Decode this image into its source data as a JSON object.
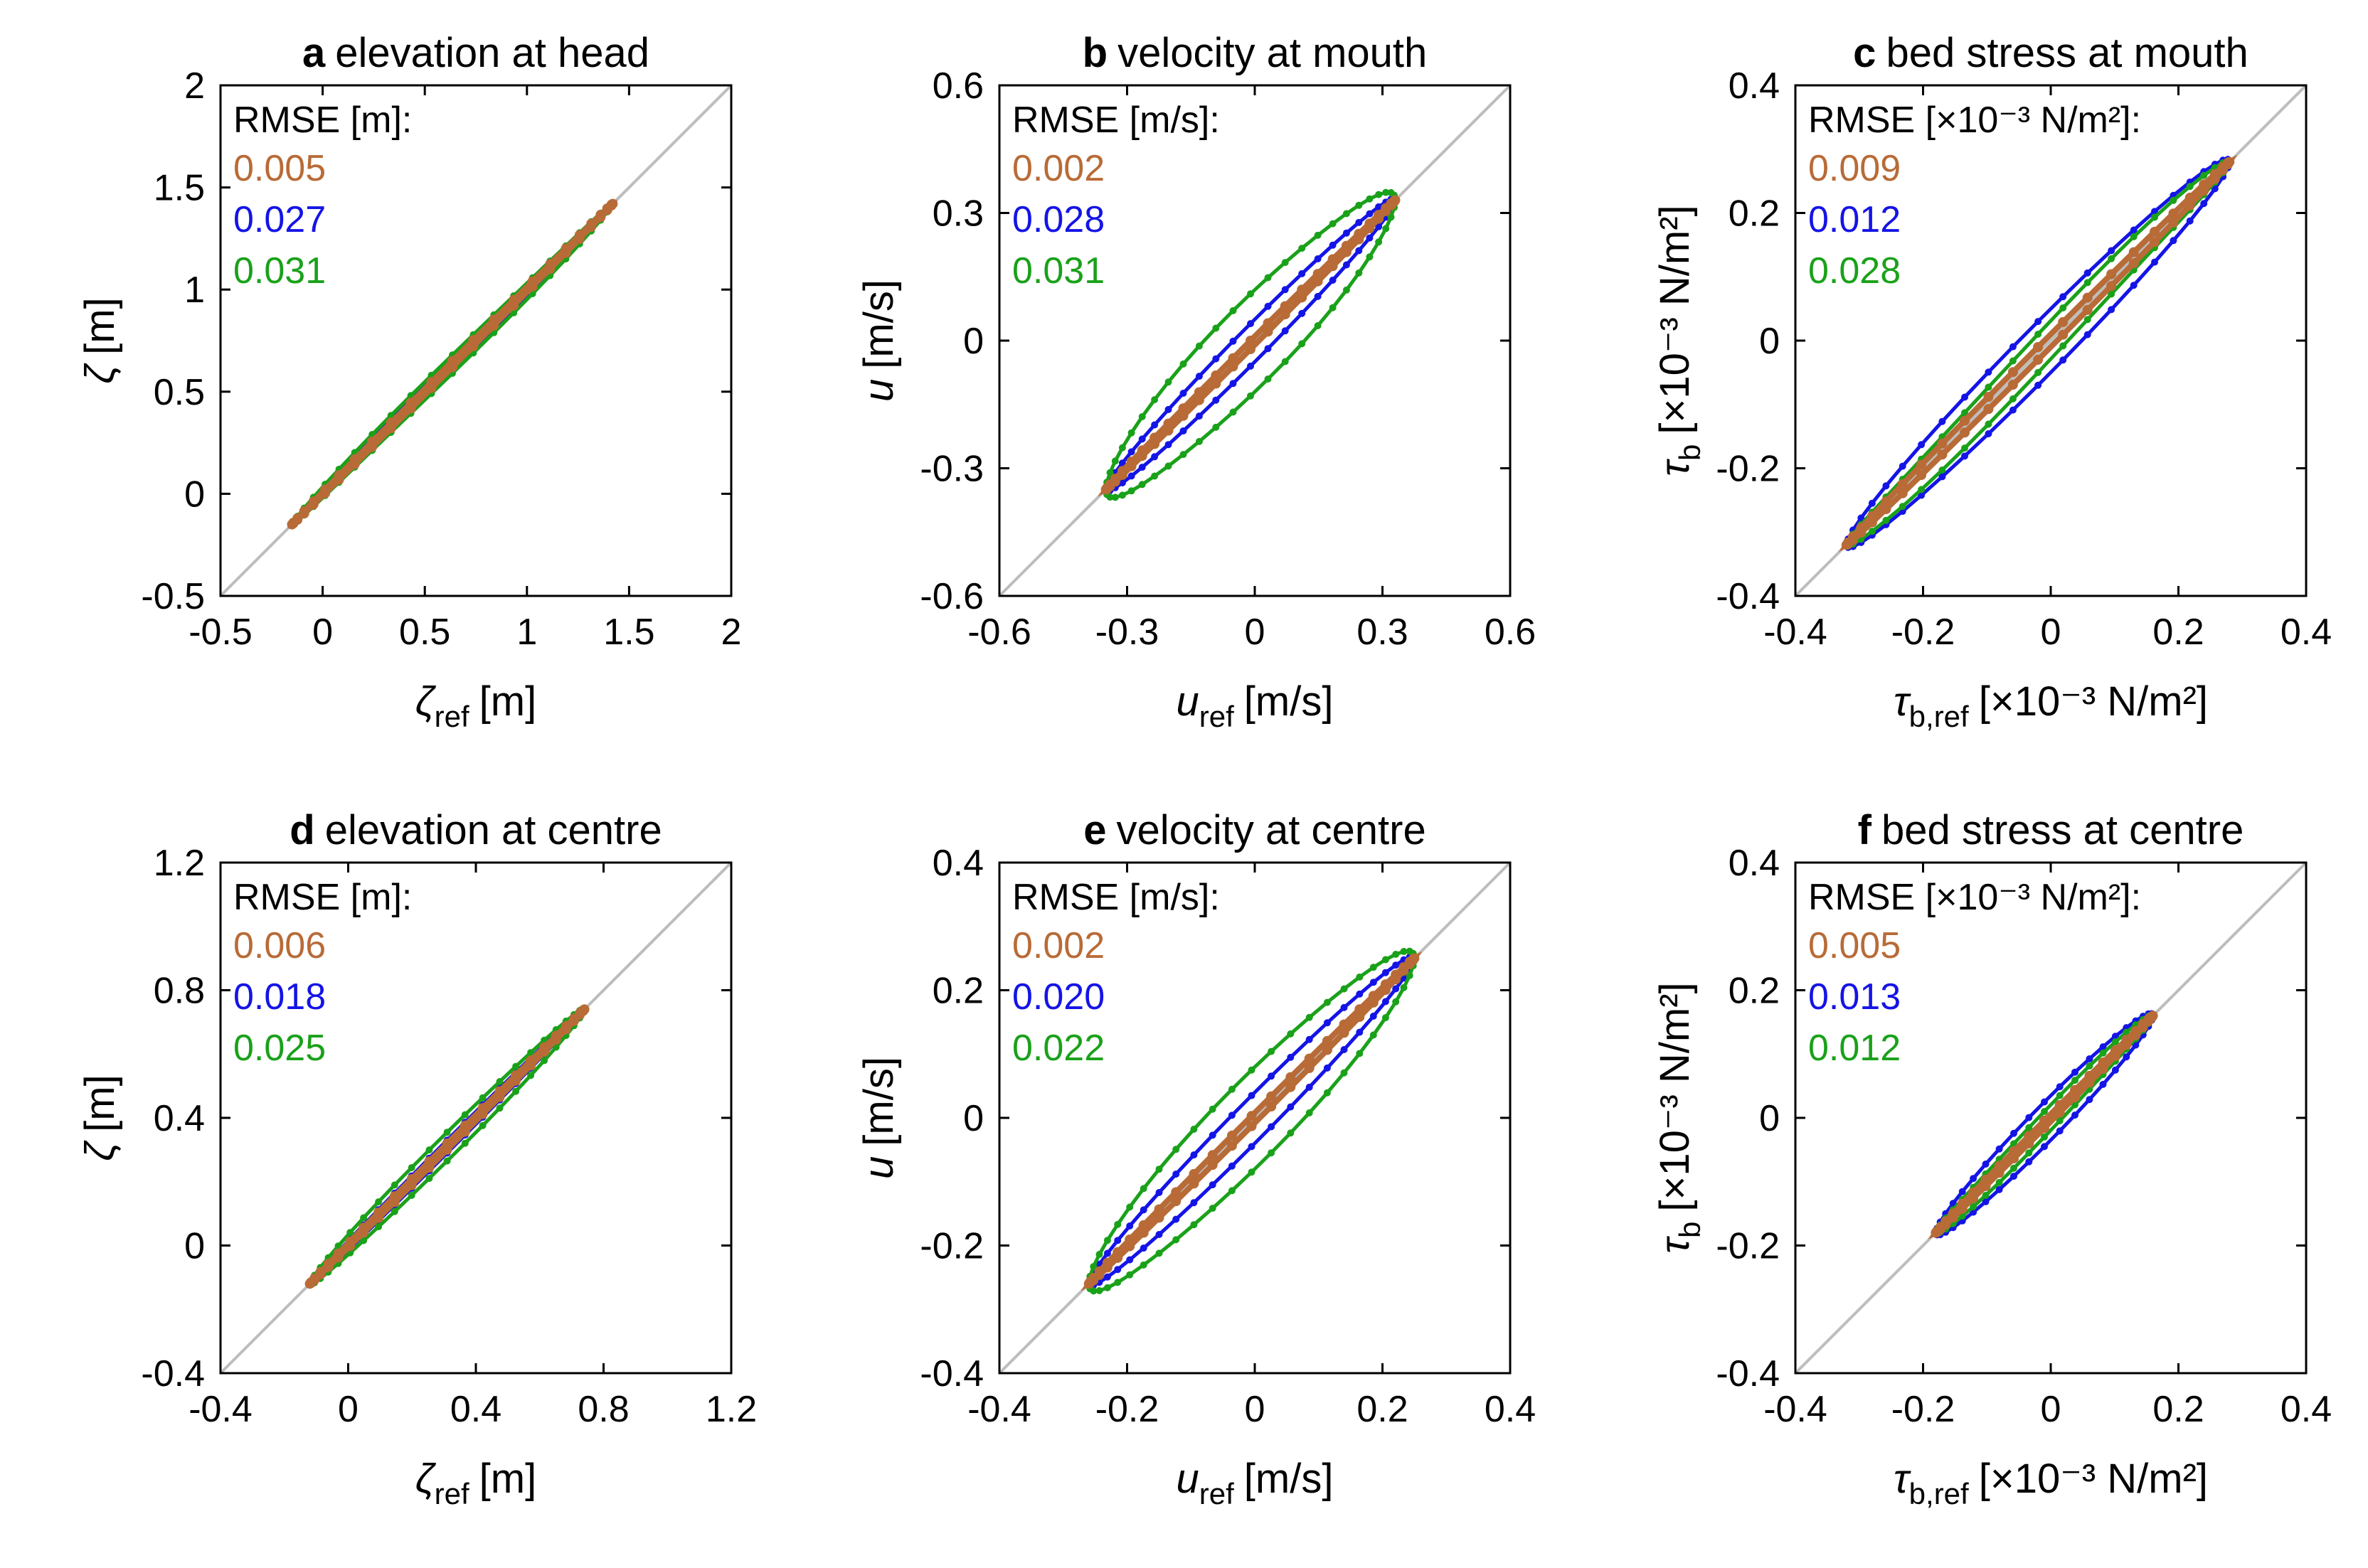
{
  "colors": {
    "brown": "#b86b37",
    "blue": "#1414e6",
    "green": "#1aa11a",
    "diag": "#bdbdbd"
  },
  "series_names": [
    "brown",
    "blue",
    "green"
  ],
  "chart_data": [
    {
      "type": "scatter",
      "panel": "a",
      "title": "elevation at head",
      "xlabel": {
        "sym": "ζ",
        "sub": "ref",
        "unit": "[m]"
      },
      "ylabel": {
        "sym": "ζ",
        "sub": "",
        "unit": "[m]"
      },
      "xlim": [
        -0.5,
        2
      ],
      "ylim": [
        -0.5,
        2
      ],
      "xticks": [
        "-0.5",
        "0",
        "0.5",
        "1",
        "1.5",
        "2"
      ],
      "yticks": [
        "-0.5",
        "0",
        "0.5",
        "1",
        "1.5",
        "2"
      ],
      "tickvals": [
        -0.5,
        0,
        0.5,
        1,
        1.5,
        2
      ],
      "rmse_label": "RMSE [m]:",
      "rmse": [
        "0.005",
        "0.027",
        "0.031"
      ],
      "range": [
        -0.15,
        1.42
      ],
      "loop": [
        0.015,
        0.03,
        0.045
      ],
      "skew": [
        0,
        0,
        0.05
      ],
      "n": 48
    },
    {
      "type": "scatter",
      "panel": "b",
      "title": "velocity at mouth",
      "xlabel": {
        "sym": "u",
        "sub": "ref",
        "unit": "[m/s]"
      },
      "ylabel": {
        "sym": "u",
        "sub": "",
        "unit": "[m/s]"
      },
      "xlim": [
        -0.6,
        0.6
      ],
      "ylim": [
        -0.6,
        0.6
      ],
      "xticks": [
        "-0.6",
        "-0.3",
        "0",
        "0.3",
        "0.6"
      ],
      "yticks": [
        "-0.6",
        "-0.3",
        "0",
        "0.3",
        "0.6"
      ],
      "tickvals": [
        -0.6,
        -0.3,
        0,
        0.3,
        0.6
      ],
      "rmse_label": "RMSE [m/s]:",
      "rmse": [
        "0.002",
        "0.028",
        "0.031"
      ],
      "range": [
        -0.35,
        0.33
      ],
      "loop": [
        0.01,
        0.05,
        0.12
      ],
      "skew": [
        0,
        0,
        0.09
      ],
      "n": 52
    },
    {
      "type": "scatter",
      "panel": "c",
      "title": "bed stress at mouth",
      "xlabel": {
        "sym": "τ",
        "sub": "b,ref",
        "unit": "[×10⁻³ N/m²]"
      },
      "ylabel": {
        "sym": "τ",
        "sub": "b",
        "unit": "[×10⁻³ N/m²]"
      },
      "xlim": [
        -0.4,
        0.4
      ],
      "ylim": [
        -0.4,
        0.4
      ],
      "xticks": [
        "-0.4",
        "-0.2",
        "0",
        "0.2",
        "0.4"
      ],
      "yticks": [
        "-0.4",
        "-0.2",
        "0",
        "0.2",
        "0.4"
      ],
      "tickvals": [
        -0.4,
        -0.2,
        0,
        0.2,
        0.4
      ],
      "rmse_label": "RMSE [×10⁻³ N/m²]:",
      "rmse": [
        "0.009",
        "0.012",
        "0.028"
      ],
      "range": [
        -0.32,
        0.28
      ],
      "loop": [
        0.01,
        0.05,
        0.03
      ],
      "skew": [
        0,
        0,
        -0.1
      ],
      "n": 48
    },
    {
      "type": "scatter",
      "panel": "d",
      "title": "elevation at centre",
      "xlabel": {
        "sym": "ζ",
        "sub": "ref",
        "unit": "[m]"
      },
      "ylabel": {
        "sym": "ζ",
        "sub": "",
        "unit": "[m]"
      },
      "xlim": [
        -0.4,
        1.2
      ],
      "ylim": [
        -0.4,
        1.2
      ],
      "xticks": [
        "-0.4",
        "0",
        "0.4",
        "0.8",
        "1.2"
      ],
      "yticks": [
        "-0.4",
        "0",
        "0.4",
        "0.8",
        "1.2"
      ],
      "tickvals": [
        -0.4,
        0,
        0.4,
        0.8,
        1.2
      ],
      "rmse_label": "RMSE [m]:",
      "rmse": [
        "0.006",
        "0.018",
        "0.025"
      ],
      "range": [
        -0.12,
        0.74
      ],
      "loop": [
        0.01,
        0.02,
        0.045
      ],
      "skew": [
        0,
        0,
        0.03
      ],
      "n": 48
    },
    {
      "type": "scatter",
      "panel": "e",
      "title": "velocity at centre",
      "xlabel": {
        "sym": "u",
        "sub": "ref",
        "unit": "[m/s]"
      },
      "ylabel": {
        "sym": "u",
        "sub": "",
        "unit": "[m/s]"
      },
      "xlim": [
        -0.4,
        0.4
      ],
      "ylim": [
        -0.4,
        0.4
      ],
      "xticks": [
        "-0.4",
        "-0.2",
        "0",
        "0.2",
        "0.4"
      ],
      "yticks": [
        "-0.4",
        "-0.2",
        "0",
        "0.2",
        "0.4"
      ],
      "tickvals": [
        -0.4,
        -0.2,
        0,
        0.2,
        0.4
      ],
      "rmse_label": "RMSE [m/s]:",
      "rmse": [
        "0.002",
        "0.020",
        "0.022"
      ],
      "range": [
        -0.26,
        0.25
      ],
      "loop": [
        0.008,
        0.04,
        0.08
      ],
      "skew": [
        0,
        0,
        0.06
      ],
      "n": 52
    },
    {
      "type": "scatter",
      "panel": "f",
      "title": "bed stress at centre",
      "xlabel": {
        "sym": "τ",
        "sub": "b,ref",
        "unit": "[×10⁻³ N/m²]"
      },
      "ylabel": {
        "sym": "τ",
        "sub": "b",
        "unit": "[×10⁻³ N/m²]"
      },
      "xlim": [
        -0.4,
        0.4
      ],
      "ylim": [
        -0.4,
        0.4
      ],
      "xticks": [
        "-0.4",
        "-0.2",
        "0",
        "0.2",
        "0.4"
      ],
      "yticks": [
        "-0.4",
        "-0.2",
        "0",
        "0.2",
        "0.4"
      ],
      "tickvals": [
        -0.4,
        -0.2,
        0,
        0.2,
        0.4
      ],
      "rmse_label": "RMSE [×10⁻³ N/m²]:",
      "rmse": [
        "0.005",
        "0.013",
        "0.012"
      ],
      "range": [
        -0.18,
        0.16
      ],
      "loop": [
        0.006,
        0.035,
        0.02
      ],
      "skew": [
        0,
        0,
        -0.07
      ],
      "n": 44
    }
  ]
}
